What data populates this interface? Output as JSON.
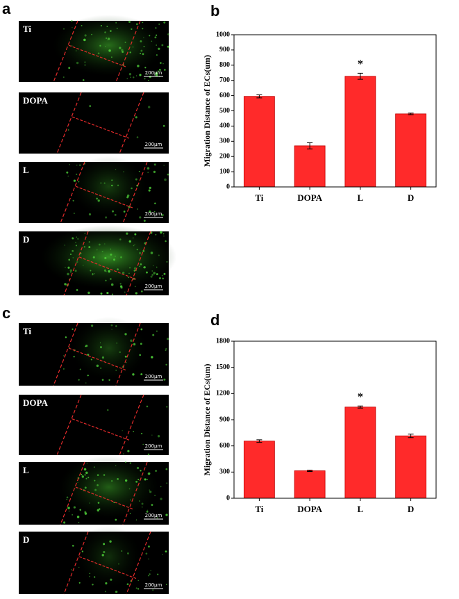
{
  "panel_labels": [
    "a",
    "b",
    "c",
    "d"
  ],
  "image_groups": [
    [
      {
        "label": "Ti",
        "scale": "200μm"
      },
      {
        "label": "DOPA",
        "scale": "200μm"
      },
      {
        "label": "L",
        "scale": "200μm"
      },
      {
        "label": "D",
        "scale": "200μm"
      }
    ],
    [
      {
        "label": "Ti",
        "scale": "200μm"
      },
      {
        "label": "DOPA",
        "scale": "200μm"
      },
      {
        "label": "L",
        "scale": "200μm"
      },
      {
        "label": "D",
        "scale": "200μm"
      }
    ]
  ],
  "chart_data": [
    {
      "type": "bar",
      "y_label": "Migration Distance of ECs(um)",
      "categories": [
        "Ti",
        "DOPA",
        "L",
        "D"
      ],
      "values": [
        595,
        270,
        727,
        480
      ],
      "errors": [
        10,
        20,
        20,
        5
      ],
      "markers": [
        null,
        null,
        "*",
        null
      ],
      "color": "#ff2a2a",
      "ylim": [
        0,
        1000
      ],
      "yticks": [
        0,
        100,
        200,
        300,
        400,
        500,
        600,
        700,
        800,
        900,
        1000
      ]
    },
    {
      "type": "bar",
      "y_label": "Migration Distance of ECs(um)",
      "categories": [
        "Ti",
        "DOPA",
        "L",
        "D"
      ],
      "values": [
        655,
        315,
        1045,
        715
      ],
      "errors": [
        15,
        8,
        12,
        20
      ],
      "markers": [
        null,
        null,
        "*",
        null
      ],
      "color": "#ff2a2a",
      "ylim": [
        0,
        1800
      ],
      "yticks": [
        0,
        300,
        600,
        900,
        1200,
        1500,
        1800
      ]
    }
  ]
}
